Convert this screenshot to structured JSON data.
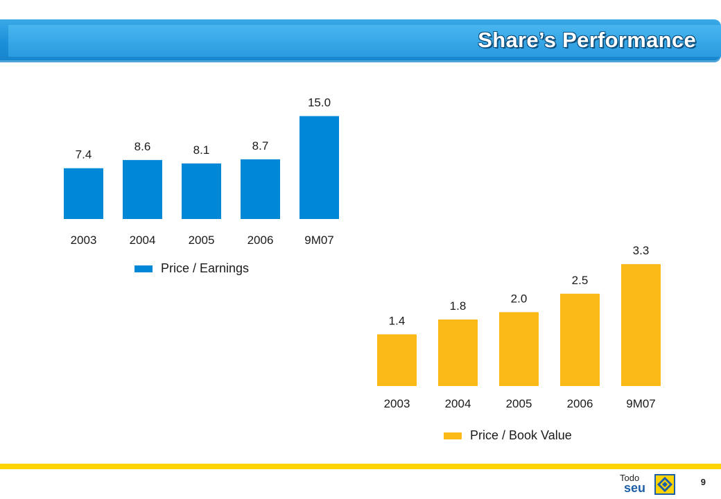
{
  "title": "Share’s Performance",
  "page_number": "9",
  "footer": {
    "brand_line1": "Todo",
    "brand_line2": "seu"
  },
  "colors": {
    "header": "#1b8fd8",
    "pe_bar": "#0088d6",
    "pbv_bar": "#fbb917",
    "footer_line": "#ffd400"
  },
  "chart_data": [
    {
      "type": "bar",
      "categories": [
        "2003",
        "2004",
        "2005",
        "2006",
        "9M07"
      ],
      "series": [
        {
          "name": "Price / Earnings",
          "values": [
            7.4,
            8.6,
            8.1,
            8.7,
            15.0
          ]
        }
      ],
      "data_labels": [
        "7.4",
        "8.6",
        "8.1",
        "8.7",
        "15.0"
      ],
      "legend": "Price / Earnings",
      "legend_placement": "bottom",
      "grid": false
    },
    {
      "type": "bar",
      "categories": [
        "2003",
        "2004",
        "2005",
        "2006",
        "9M07"
      ],
      "series": [
        {
          "name": "Price / Book Value",
          "values": [
            1.4,
            1.8,
            2.0,
            2.5,
            3.3
          ]
        }
      ],
      "data_labels": [
        "1.4",
        "1.8",
        "2.0",
        "2.5",
        "3.3"
      ],
      "legend": "Price / Book Value",
      "legend_placement": "bottom",
      "grid": false
    }
  ]
}
